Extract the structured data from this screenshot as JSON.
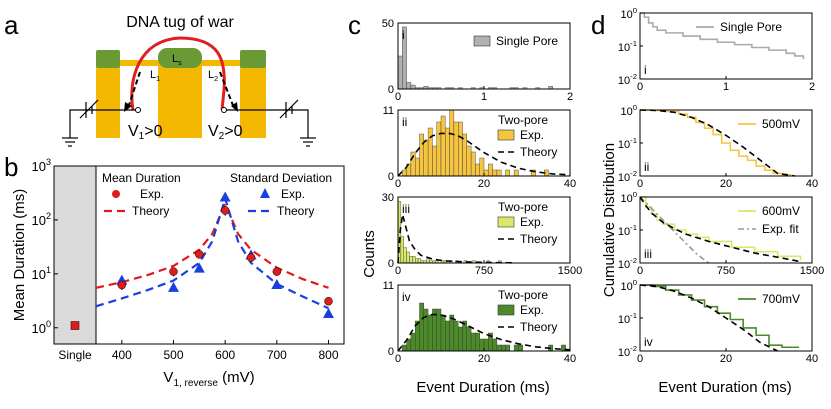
{
  "panel_labels": {
    "a": "a",
    "b": "b",
    "c": "c",
    "d": "d"
  },
  "schematic": {
    "title": "DNA tug of war",
    "ls_label": "L",
    "ls_sub": "s",
    "l1_label": "L",
    "l1_sub": "1",
    "l2_label": "L",
    "l2_sub": "2",
    "v1_label": "V",
    "v1_sub": "1",
    "v1_rest": ">0",
    "v2_label": "V",
    "v2_sub": "2",
    "v2_rest": ">0",
    "colors": {
      "membrane": "#f5b800",
      "cap": "#6a9a34",
      "dna": "#e02020"
    }
  },
  "chart_data": [
    {
      "id": "b",
      "type": "scatter",
      "title": "",
      "ylabel": "Mean Duration (ms)",
      "xlabel": "V",
      "xlabel_sub": "1, reverse",
      "xlabel_unit": " (mV)",
      "xlim": [
        350,
        830
      ],
      "ylim": [
        0.5,
        1000
      ],
      "yscale": "log",
      "xticks": [
        400,
        500,
        600,
        700,
        800
      ],
      "yticks": [
        1,
        10,
        100,
        1000
      ],
      "ytick_base": "10",
      "ytick_exps": [
        "0",
        "1",
        "2",
        "3"
      ],
      "single_label": "Single",
      "single_value": 1.1,
      "legend_mean": {
        "title": "Mean Duration",
        "exp": "Exp.",
        "theory": "Theory",
        "color": "#e01b1b"
      },
      "legend_std": {
        "title": "Standard Deviation",
        "exp": "Exp.",
        "theory": "Theory",
        "color": "#1a3fe0"
      },
      "series": [
        {
          "name": "Mean Duration Exp.",
          "color": "#e01b1b",
          "x": [
            400,
            500,
            550,
            600,
            650,
            700,
            800
          ],
          "y": [
            6.2,
            11,
            23,
            150,
            20,
            11,
            3.1
          ],
          "err": [
            1.2,
            2,
            3,
            30,
            3,
            1.5,
            0.4
          ]
        },
        {
          "name": "Standard Deviation Exp.",
          "color": "#1a3fe0",
          "x": [
            400,
            500,
            550,
            600,
            650,
            700,
            800
          ],
          "y": [
            7.5,
            5.5,
            12.5,
            260,
            22,
            6.2,
            1.8
          ]
        },
        {
          "name": "Mean Duration Theory",
          "color": "#e01b1b",
          "x": [
            350,
            400,
            450,
            500,
            550,
            575,
            600,
            625,
            650,
            700,
            750,
            800
          ],
          "y": [
            5.5,
            7,
            9.5,
            14,
            28,
            55,
            200,
            55,
            28,
            13,
            8,
            5.5
          ]
        },
        {
          "name": "Standard Deviation Theory",
          "color": "#1a3fe0",
          "x": [
            350,
            400,
            450,
            500,
            550,
            575,
            600,
            625,
            650,
            700,
            750,
            800
          ],
          "y": [
            2.5,
            3.5,
            5,
            7.5,
            16,
            40,
            250,
            40,
            16,
            6.5,
            3.8,
            2.3
          ]
        }
      ]
    },
    {
      "id": "c-i",
      "type": "bar",
      "roman": "i",
      "legend": "Single Pore",
      "color": "#b0b0b0",
      "xlim": [
        0,
        2
      ],
      "ylim": [
        0,
        50
      ],
      "xticks": [
        0,
        1,
        2
      ],
      "yticks": [
        0,
        50
      ],
      "bin_width": 0.05,
      "values": [
        25,
        47,
        5,
        3,
        1,
        1,
        2,
        1,
        1,
        1,
        0,
        1,
        1,
        0,
        1,
        0,
        0,
        1,
        0,
        1,
        0,
        1,
        1,
        0,
        0,
        0,
        1,
        1,
        0,
        1,
        0,
        0,
        1,
        0,
        0,
        2,
        0,
        0,
        0,
        0
      ]
    },
    {
      "id": "c-ii",
      "type": "bar",
      "roman": "ii",
      "legend_title": "Two-pore",
      "legend_exp": "Exp.",
      "legend_theory": "Theory",
      "color": "#f5c542",
      "xlim": [
        0,
        40
      ],
      "ylim": [
        0,
        11
      ],
      "xticks": [
        0,
        20,
        40
      ],
      "yticks": [
        0,
        11
      ],
      "bin_width": 1,
      "values": [
        0,
        1,
        2,
        4,
        3,
        7,
        6,
        8,
        5,
        9,
        10,
        8,
        11,
        9,
        9,
        7,
        5,
        4,
        2,
        3,
        1,
        2,
        1,
        1,
        0,
        1,
        0,
        1,
        0,
        0,
        0,
        1,
        0,
        0,
        1,
        0,
        0,
        0,
        0,
        0
      ],
      "theory": {
        "x": [
          0,
          2,
          4,
          6,
          8,
          10,
          12,
          14,
          16,
          18,
          20,
          24,
          28,
          32,
          36,
          40
        ],
        "y": [
          0,
          1.5,
          3.8,
          5.6,
          6.7,
          7.1,
          7.1,
          6.7,
          5.9,
          4.9,
          3.9,
          2.3,
          1.3,
          0.7,
          0.35,
          0.2
        ]
      }
    },
    {
      "id": "c-iii",
      "type": "bar",
      "roman": "iii",
      "legend_title": "Two-pore",
      "legend_exp": "Exp.",
      "legend_theory": "Theory",
      "color": "#d9e86a",
      "xlim": [
        0,
        1500
      ],
      "ylim": [
        0,
        30
      ],
      "xticks": [
        0,
        750,
        1500
      ],
      "yticks": [
        0,
        30
      ],
      "bin_width": 25,
      "values": [
        28,
        12,
        7,
        5,
        3,
        3,
        2,
        2,
        1,
        1,
        2,
        1,
        1,
        1,
        0,
        1,
        1,
        0,
        1,
        0,
        1,
        0,
        0,
        1,
        0,
        0,
        1,
        0,
        0,
        0,
        0,
        1,
        0,
        0,
        0,
        1,
        0,
        0,
        0,
        0
      ],
      "theory": {
        "x": [
          0,
          20,
          40,
          70,
          100,
          150,
          200,
          300,
          400,
          600,
          800,
          1000
        ],
        "y": [
          0,
          15,
          22,
          16,
          10,
          6,
          3.5,
          1.8,
          1,
          0.5,
          0.2,
          0.1
        ]
      }
    },
    {
      "id": "c-iv",
      "type": "bar",
      "roman": "iv",
      "legend_title": "Two-pore",
      "legend_exp": "Exp.",
      "legend_theory": "Theory",
      "color": "#4d8a2a",
      "xlim": [
        0,
        40
      ],
      "ylim": [
        0,
        11
      ],
      "xticks": [
        0,
        20,
        40
      ],
      "yticks": [
        0,
        11
      ],
      "bin_width": 1,
      "values": [
        0,
        1,
        2,
        3,
        5,
        8,
        7,
        6,
        7,
        7,
        6,
        5,
        6,
        5,
        4,
        5,
        4,
        3,
        3,
        2,
        2,
        3,
        2,
        1,
        1,
        1,
        0,
        1,
        1,
        0,
        0,
        0,
        0,
        0,
        0,
        1,
        0,
        0,
        1,
        0
      ],
      "theory": {
        "x": [
          0,
          2,
          4,
          6,
          8,
          10,
          12,
          14,
          16,
          18,
          20,
          24,
          28,
          32,
          36,
          40
        ],
        "y": [
          0,
          1.8,
          4.2,
          5.6,
          6.1,
          6.0,
          5.6,
          5.0,
          4.3,
          3.6,
          2.9,
          1.9,
          1.2,
          0.7,
          0.4,
          0.2
        ]
      }
    },
    {
      "id": "d-i",
      "type": "line",
      "roman": "i",
      "yscale": "log",
      "legend": "Single Pore",
      "color": "#aaaaaa",
      "xlim": [
        0,
        2
      ],
      "ylim": [
        0.01,
        1
      ],
      "xticks": [
        0,
        1,
        2
      ],
      "ytick_exps": [
        "0",
        "-1",
        "-2"
      ],
      "x": [
        0,
        0.05,
        0.1,
        0.15,
        0.2,
        0.3,
        0.5,
        0.7,
        0.9,
        1.1,
        1.3,
        1.5,
        1.7,
        1.8,
        1.9
      ],
      "y": [
        1,
        0.75,
        0.5,
        0.38,
        0.3,
        0.25,
        0.2,
        0.16,
        0.13,
        0.11,
        0.09,
        0.075,
        0.06,
        0.05,
        0.04
      ]
    },
    {
      "id": "d-ii",
      "type": "line",
      "roman": "ii",
      "yscale": "log",
      "legend": "500mV",
      "color": "#f5c542",
      "xlim": [
        0,
        40
      ],
      "ylim": [
        0.01,
        1
      ],
      "xticks": [
        0,
        20,
        40
      ],
      "ytick_exps": [
        "0",
        "-1",
        "-2"
      ],
      "x": [
        0,
        3,
        6,
        9,
        11,
        13,
        15,
        17,
        19,
        21,
        23,
        25,
        27,
        29,
        31,
        33,
        35
      ],
      "y": [
        1,
        0.98,
        0.9,
        0.75,
        0.6,
        0.42,
        0.28,
        0.18,
        0.1,
        0.06,
        0.04,
        0.03,
        0.02,
        0.015,
        0.012,
        0.011,
        0.01
      ],
      "theory": {
        "x": [
          0,
          4,
          8,
          12,
          16,
          20,
          24,
          28,
          32,
          36
        ],
        "y": [
          1,
          0.97,
          0.85,
          0.6,
          0.35,
          0.17,
          0.075,
          0.03,
          0.012,
          0.005
        ]
      }
    },
    {
      "id": "d-iii",
      "type": "line",
      "roman": "iii",
      "yscale": "log",
      "legend": "600mV",
      "legend_fit": "Exp. fit",
      "color": "#d9e86a",
      "fit_color": "#999999",
      "xlim": [
        0,
        1500
      ],
      "ylim": [
        0.01,
        1
      ],
      "xticks": [
        0,
        750,
        1500
      ],
      "ytick_exps": [
        "0",
        "-1",
        "-2"
      ],
      "x": [
        0,
        50,
        100,
        150,
        200,
        300,
        400,
        500,
        600,
        800,
        1000,
        1200,
        1400
      ],
      "y": [
        1,
        0.5,
        0.3,
        0.2,
        0.15,
        0.1,
        0.075,
        0.06,
        0.045,
        0.03,
        0.022,
        0.016,
        0.012
      ],
      "theory": {
        "x": [
          0,
          50,
          100,
          200,
          300,
          400,
          600,
          800,
          1000,
          1200,
          1400
        ],
        "y": [
          1,
          0.55,
          0.33,
          0.17,
          0.11,
          0.075,
          0.045,
          0.03,
          0.02,
          0.015,
          0.011
        ]
      },
      "fit": {
        "x": [
          0,
          100,
          200,
          300,
          400,
          500,
          600
        ],
        "y": [
          1,
          0.45,
          0.2,
          0.09,
          0.04,
          0.018,
          0.008
        ]
      }
    },
    {
      "id": "d-iv",
      "type": "line",
      "roman": "iv",
      "yscale": "log",
      "legend": "700mV",
      "color": "#4d8a2a",
      "xlim": [
        0,
        40
      ],
      "ylim": [
        0.01,
        1
      ],
      "xticks": [
        0,
        20,
        40
      ],
      "ytick_exps": [
        "0",
        "-1",
        "-2"
      ],
      "x": [
        0,
        3,
        6,
        9,
        12,
        15,
        18,
        21,
        24,
        27,
        30,
        33,
        37
      ],
      "y": [
        1,
        0.9,
        0.7,
        0.5,
        0.35,
        0.22,
        0.14,
        0.09,
        0.05,
        0.03,
        0.015,
        0.013,
        0.013
      ],
      "theory": {
        "x": [
          0,
          4,
          8,
          12,
          16,
          20,
          24,
          28,
          32
        ],
        "y": [
          1,
          0.9,
          0.65,
          0.4,
          0.22,
          0.1,
          0.045,
          0.018,
          0.007
        ]
      }
    }
  ],
  "axis_labels": {
    "c_y": "Counts",
    "c_x": "Event Duration (ms)",
    "d_y": "Cumulative Distribution",
    "d_x": "Event Duration (ms)"
  }
}
